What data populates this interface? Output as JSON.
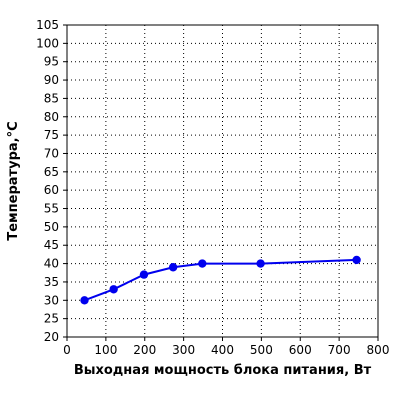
{
  "chart_data": {
    "type": "line",
    "title": "",
    "xlabel": "Выходная мощность блока питания, Вт",
    "ylabel": "Температура,°C",
    "xlim": [
      0,
      800
    ],
    "ylim": [
      20,
      105
    ],
    "x_ticks": [
      0,
      100,
      200,
      300,
      400,
      500,
      600,
      700,
      800
    ],
    "y_ticks": [
      20,
      25,
      30,
      35,
      40,
      45,
      50,
      55,
      60,
      65,
      70,
      75,
      80,
      85,
      90,
      95,
      100,
      105
    ],
    "grid": true,
    "legend": "none",
    "series": [
      {
        "color": "#0000ee",
        "marker": "circle",
        "points": [
          {
            "x": 45,
            "y": 30
          },
          {
            "x": 120,
            "y": 33
          },
          {
            "x": 198,
            "y": 37
          },
          {
            "x": 273,
            "y": 39
          },
          {
            "x": 348,
            "y": 40
          },
          {
            "x": 498,
            "y": 40
          },
          {
            "x": 745,
            "y": 41
          }
        ]
      }
    ]
  }
}
